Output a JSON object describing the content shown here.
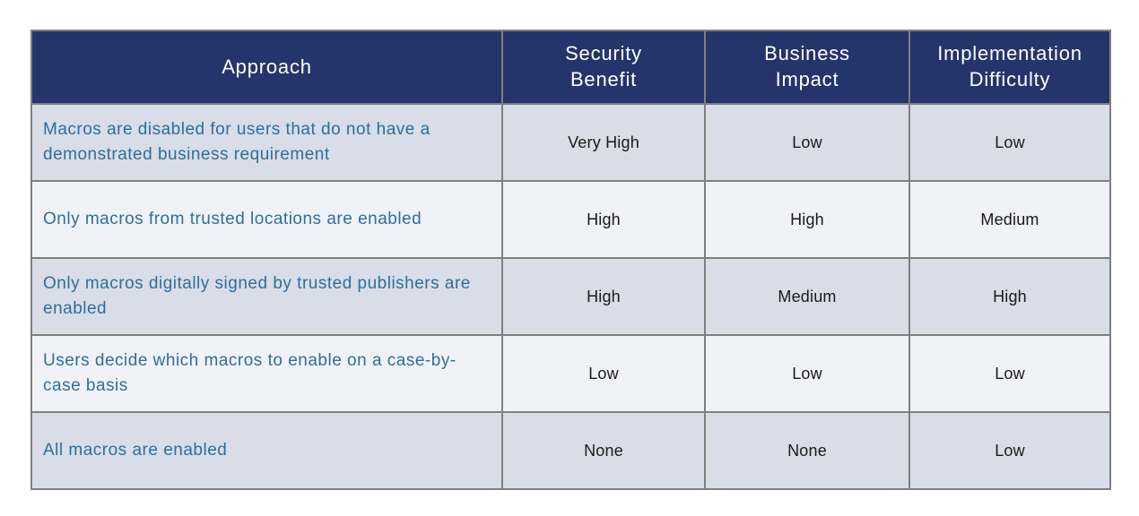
{
  "colors": {
    "header_background": "#24356b",
    "header_text": "#ffffff",
    "row_odd_background": "#d8dde8",
    "row_even_background": "#f1f2f7",
    "approach_text": "#2e6f9a",
    "value_text": "#1a1a1a",
    "grid_border": "#7f7f7f",
    "page_background": "#ffffff"
  },
  "table": {
    "columns": [
      {
        "label": "Approach"
      },
      {
        "label": "Security\nBenefit"
      },
      {
        "label": "Business\nImpact"
      },
      {
        "label": "Implementation\nDifficulty"
      }
    ],
    "rows": [
      {
        "approach": "Macros are disabled for users that do not have a demonstrated business requirement",
        "security_benefit": "Very High",
        "business_impact": "Low",
        "implementation_difficulty": "Low"
      },
      {
        "approach": "Only macros from trusted locations are enabled",
        "security_benefit": "High",
        "business_impact": "High",
        "implementation_difficulty": "Medium"
      },
      {
        "approach": "Only macros digitally signed by trusted publishers are enabled",
        "security_benefit": "High",
        "business_impact": "Medium",
        "implementation_difficulty": "High"
      },
      {
        "approach": "Users decide which macros to enable on a case-by-case basis",
        "security_benefit": "Low",
        "business_impact": "Low",
        "implementation_difficulty": "Low"
      },
      {
        "approach": "All macros are enabled",
        "security_benefit": "None",
        "business_impact": "None",
        "implementation_difficulty": "Low"
      }
    ]
  }
}
